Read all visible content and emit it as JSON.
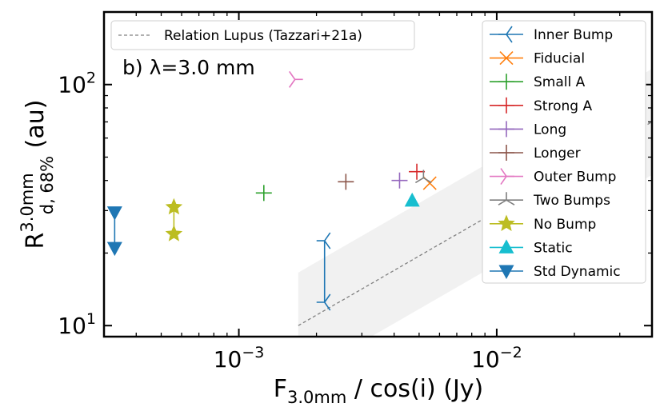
{
  "chart_data": {
    "type": "scatter",
    "panel_label": "b) λ=3.0 mm",
    "xlabel": {
      "main": "F",
      "sub": "3.0mm",
      "rest": " / cos(i) (Jy)"
    },
    "ylabel": {
      "main": "R",
      "sup": "3.0mm",
      "sub": "d, 68%",
      "rest": " (au)"
    },
    "x_scale": "log",
    "y_scale": "log",
    "xlim": [
      0.0003,
      0.04
    ],
    "ylim": [
      9,
      200
    ],
    "x_tick_labels": [
      {
        "value": 0.001,
        "base": "10",
        "exp": "−3"
      },
      {
        "value": 0.01,
        "base": "10",
        "exp": "−2"
      }
    ],
    "y_tick_labels": [
      {
        "value": 10,
        "base": "10",
        "exp": "1"
      },
      {
        "value": 100,
        "base": "10",
        "exp": "2"
      }
    ],
    "grid": false,
    "relation": {
      "name": "Relation Lupus (Tazzari+21a)",
      "color": "#808080",
      "points": [
        [
          0.0017,
          10
        ],
        [
          0.04,
          70
        ]
      ],
      "band_width_dex": 0.22
    },
    "legend_left": {
      "position": "top-left",
      "entries": [
        "Relation Lupus (Tazzari+21a)"
      ]
    },
    "legend_right": {
      "position": "top-right",
      "entries": [
        {
          "name": "Inner Bump",
          "color": "#1f77b4",
          "marker": "tri-right"
        },
        {
          "name": "Fiducial",
          "color": "#ff7f0e",
          "marker": "x"
        },
        {
          "name": "Small A",
          "color": "#2ca02c",
          "marker": "plus"
        },
        {
          "name": "Strong A",
          "color": "#d62728",
          "marker": "plus"
        },
        {
          "name": "Long",
          "color": "#9467bd",
          "marker": "plus"
        },
        {
          "name": "Longer",
          "color": "#8c564b",
          "marker": "plus"
        },
        {
          "name": "Outer Bump",
          "color": "#e377c2",
          "marker": "tri-left"
        },
        {
          "name": "Two Bumps",
          "color": "#7f7f7f",
          "marker": "tri-up"
        },
        {
          "name": "No Bump",
          "color": "#bcbd22",
          "marker": "star"
        },
        {
          "name": "Static",
          "color": "#17becf",
          "marker": "triangle-up"
        },
        {
          "name": "Std Dynamic",
          "color": "#1f77b4",
          "marker": "triangle-down"
        }
      ]
    },
    "series": [
      {
        "name": "Inner Bump",
        "color": "#1f77b4",
        "marker": "tri-right",
        "points": [
          [
            0.00215,
            22.5
          ],
          [
            0.00215,
            12.5
          ]
        ],
        "connected": true
      },
      {
        "name": "Fiducial",
        "color": "#ff7f0e",
        "marker": "x",
        "points": [
          [
            0.0055,
            39
          ]
        ],
        "connected": false
      },
      {
        "name": "Small A",
        "color": "#2ca02c",
        "marker": "plus",
        "points": [
          [
            0.00125,
            35.5
          ]
        ],
        "connected": false
      },
      {
        "name": "Strong A",
        "color": "#d62728",
        "marker": "plus",
        "points": [
          [
            0.0049,
            43.5
          ]
        ],
        "connected": false
      },
      {
        "name": "Long",
        "color": "#9467bd",
        "marker": "plus",
        "points": [
          [
            0.0042,
            40
          ]
        ],
        "connected": false
      },
      {
        "name": "Longer",
        "color": "#8c564b",
        "marker": "plus",
        "points": [
          [
            0.0026,
            39.5
          ]
        ],
        "connected": false
      },
      {
        "name": "Outer Bump",
        "color": "#e377c2",
        "marker": "tri-left",
        "points": [
          [
            0.00165,
            105
          ]
        ],
        "connected": false
      },
      {
        "name": "Two Bumps",
        "color": "#7f7f7f",
        "marker": "tri-up",
        "points": [
          [
            0.0052,
            41
          ]
        ],
        "connected": false
      },
      {
        "name": "No Bump",
        "color": "#bcbd22",
        "marker": "star",
        "points": [
          [
            0.00056,
            31
          ],
          [
            0.00056,
            24
          ]
        ],
        "connected": true
      },
      {
        "name": "Static",
        "color": "#17becf",
        "marker": "triangle-up",
        "points": [
          [
            0.0047,
            33
          ]
        ],
        "connected": false
      },
      {
        "name": "Std Dynamic",
        "color": "#1f77b4",
        "marker": "triangle-down",
        "points": [
          [
            0.00033,
            29.5
          ],
          [
            0.00033,
            21
          ]
        ],
        "connected": true
      }
    ]
  }
}
